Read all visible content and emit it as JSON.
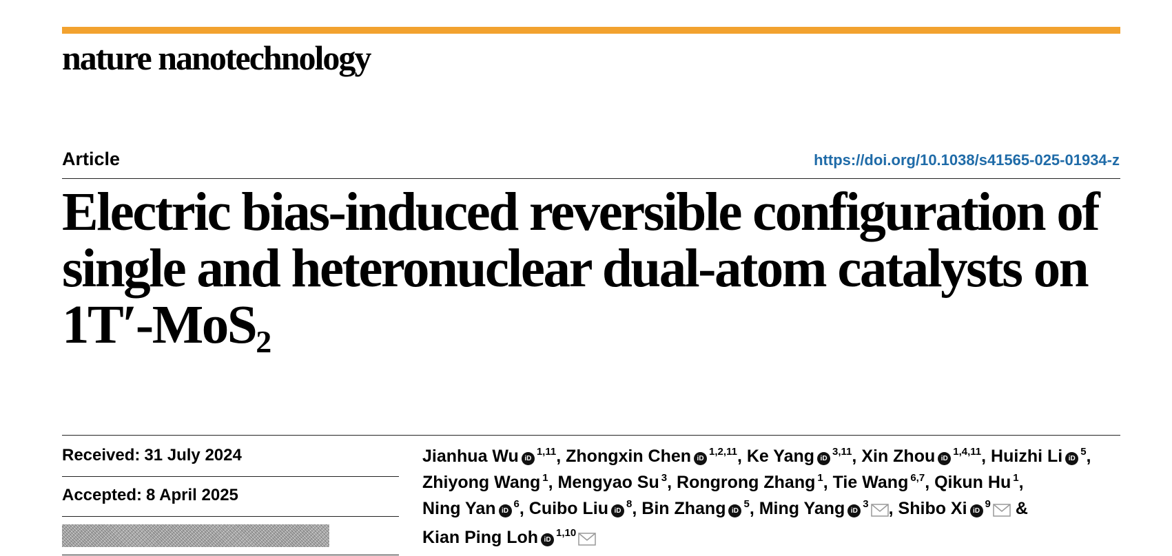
{
  "header": {
    "journal": "nature nanotechnology",
    "accent_color": "#f2a22f",
    "article_type": "Article",
    "doi": "https://doi.org/10.1038/s41565-025-01934-z",
    "doi_color": "#1f6ba8"
  },
  "title": {
    "main": "Electric bias-induced reversible configuration of single and heteronuclear dual-atom catalysts on 1T′-MoS",
    "subscript": "2"
  },
  "dates": {
    "received_label": "Received:",
    "received_value": "31 July 2024",
    "accepted_label": "Accepted:",
    "accepted_value": "8 April 2025"
  },
  "authors": [
    {
      "name": "Jianhua Wu",
      "orcid": true,
      "affiliations": "1,11",
      "corresponding": false,
      "sep": ", "
    },
    {
      "name": "Zhongxin Chen",
      "orcid": true,
      "affiliations": "1,2,11",
      "corresponding": false,
      "sep": ", "
    },
    {
      "name": "Ke Yang",
      "orcid": true,
      "affiliations": "3,11",
      "corresponding": false,
      "sep": ", "
    },
    {
      "name": "Xin Zhou",
      "orcid": true,
      "affiliations": "1,4,11",
      "corresponding": false,
      "sep": ", "
    },
    {
      "name": "Huizhi Li",
      "orcid": true,
      "affiliations": "5",
      "corresponding": false,
      "sep": ", "
    },
    {
      "name": "Zhiyong Wang",
      "orcid": false,
      "affiliations": "1",
      "corresponding": false,
      "sep": ", "
    },
    {
      "name": "Mengyao Su",
      "orcid": false,
      "affiliations": "3",
      "corresponding": false,
      "sep": ", "
    },
    {
      "name": "Rongrong Zhang",
      "orcid": false,
      "affiliations": "1",
      "corresponding": false,
      "sep": ", "
    },
    {
      "name": "Tie Wang",
      "orcid": false,
      "affiliations": "6,7",
      "corresponding": false,
      "sep": ", "
    },
    {
      "name": "Qikun Hu",
      "orcid": false,
      "affiliations": "1",
      "corresponding": false,
      "sep": ", "
    },
    {
      "name": "Ning Yan",
      "orcid": true,
      "affiliations": "6",
      "corresponding": false,
      "sep": ", "
    },
    {
      "name": "Cuibo Liu",
      "orcid": true,
      "affiliations": "8",
      "corresponding": false,
      "sep": ", "
    },
    {
      "name": "Bin Zhang",
      "orcid": true,
      "affiliations": "5",
      "corresponding": false,
      "sep": ", "
    },
    {
      "name": "Ming Yang",
      "orcid": true,
      "affiliations": "3",
      "corresponding": true,
      "sep": ", "
    },
    {
      "name": "Shibo Xi",
      "orcid": true,
      "affiliations": "9",
      "corresponding": true,
      "sep": " & "
    },
    {
      "name": "Kian Ping Loh",
      "orcid": true,
      "affiliations": "1,10",
      "corresponding": true,
      "sep": ""
    }
  ],
  "icons": {
    "orcid": "orcid-icon",
    "orcid_glyph": "iD",
    "mail": "envelope-icon"
  }
}
